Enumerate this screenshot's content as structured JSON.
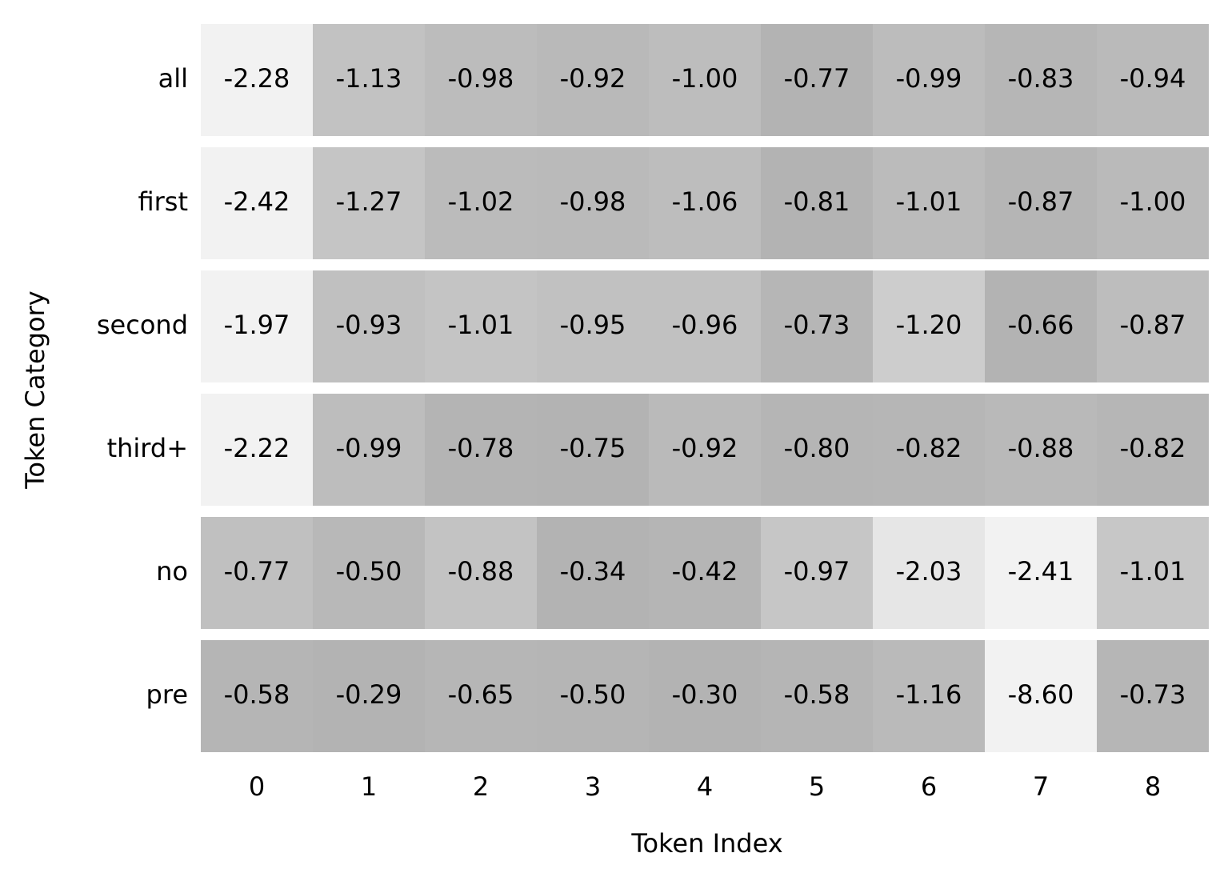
{
  "chart_data": {
    "type": "heatmap",
    "x_label": "Token Index",
    "y_label": "Token Category",
    "x": [
      0,
      1,
      2,
      3,
      4,
      5,
      6,
      7,
      8
    ],
    "y": [
      "all",
      "first",
      "second",
      "third+",
      "no",
      "pre"
    ],
    "values": [
      [
        -2.28,
        -1.13,
        -0.98,
        -0.92,
        -1.0,
        -0.77,
        -0.99,
        -0.83,
        -0.94
      ],
      [
        -2.42,
        -1.27,
        -1.02,
        -0.98,
        -1.06,
        -0.81,
        -1.01,
        -0.87,
        -1.0
      ],
      [
        -1.97,
        -0.93,
        -1.01,
        -0.95,
        -0.96,
        -0.73,
        -1.2,
        -0.66,
        -0.87
      ],
      [
        -2.22,
        -0.99,
        -0.78,
        -0.75,
        -0.92,
        -0.8,
        -0.82,
        -0.88,
        -0.82
      ],
      [
        -0.77,
        -0.5,
        -0.88,
        -0.34,
        -0.42,
        -0.97,
        -2.03,
        -2.41,
        -1.01
      ],
      [
        -0.58,
        -0.29,
        -0.65,
        -0.5,
        -0.3,
        -0.58,
        -1.16,
        -8.6,
        -0.73
      ]
    ],
    "value_labels": [
      [
        "-2.28",
        "-1.13",
        "-0.98",
        "-0.92",
        "-1.00",
        "-0.77",
        "-0.99",
        "-0.83",
        "-0.94"
      ],
      [
        "-2.42",
        "-1.27",
        "-1.02",
        "-0.98",
        "-1.06",
        "-0.81",
        "-1.01",
        "-0.87",
        "-1.00"
      ],
      [
        "-1.97",
        "-0.93",
        "-1.01",
        "-0.95",
        "-0.96",
        "-0.73",
        "-1.20",
        "-0.66",
        "-0.87"
      ],
      [
        "-2.22",
        "-0.99",
        "-0.78",
        "-0.75",
        "-0.92",
        "-0.80",
        "-0.82",
        "-0.88",
        "-0.82"
      ],
      [
        "-0.77",
        "-0.50",
        "-0.88",
        "-0.34",
        "-0.42",
        "-0.97",
        "-2.03",
        "-2.41",
        "-1.01"
      ],
      [
        "-0.58",
        "-0.29",
        "-0.65",
        "-0.50",
        "-0.30",
        "-0.58",
        "-1.16",
        "-8.60",
        "-0.73"
      ]
    ],
    "colors": [
      "#f2f2f2",
      "#b3b3b3"
    ]
  }
}
